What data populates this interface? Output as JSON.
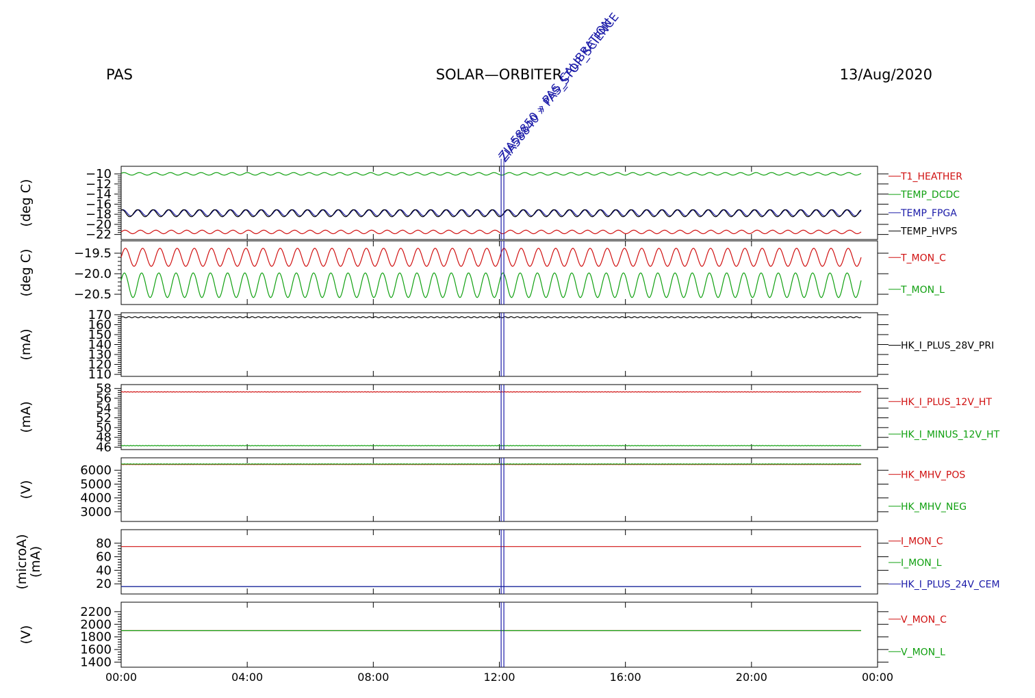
{
  "header": {
    "left": "PAS",
    "center": "SOLAR—ORBITER",
    "right": "13/Aug/2020"
  },
  "event": {
    "label": "ZIA58840 » PAS_STOP_SCIENCE",
    "label_overlay": "ZIA58850 » PAS_CALIBRATION",
    "time_hours": 12.1
  },
  "colors": {
    "red": "#d01010",
    "green": "#10a010",
    "blue": "#1a1aa8",
    "black": "#000000",
    "event": "#1a1aa8"
  },
  "chart_data": [
    {
      "type": "line",
      "ylabel": "(deg C)",
      "ylim": [
        -23,
        -8.5
      ],
      "yticks": [
        -10,
        -12,
        -14,
        -16,
        -18,
        -20,
        -22
      ],
      "ytick_labels": [
        "−10",
        "−12",
        "−14",
        "−16",
        "−18",
        "−20",
        "−22"
      ],
      "xlim": [
        0,
        24
      ],
      "series": [
        {
          "name": "T1_HEATHER",
          "color": "red",
          "mean": -21.5,
          "amp": 0.35,
          "cycles": 48
        },
        {
          "name": "TEMP_DCDC",
          "color": "green",
          "mean": -10.0,
          "amp": 0.25,
          "cycles": 48
        },
        {
          "name": "TEMP_FPGA",
          "color": "blue",
          "mean": -17.7,
          "amp": 0.6,
          "cycles": 48
        },
        {
          "name": "TEMP_HVPS",
          "color": "black",
          "mean": -17.8,
          "amp": 0.7,
          "cycles": 48
        }
      ]
    },
    {
      "type": "line",
      "ylabel": "(deg C)",
      "ylim": [
        -20.75,
        -19.2
      ],
      "yticks": [
        -19.5,
        -20.0,
        -20.5
      ],
      "ytick_labels": [
        "−19.5",
        "−20.0",
        "−20.5"
      ],
      "xlim": [
        0,
        24
      ],
      "series": [
        {
          "name": "T_MON_C",
          "color": "red",
          "mean": -19.6,
          "amp": 0.22,
          "cycles": 43
        },
        {
          "name": "T_MON_L",
          "color": "green",
          "mean": -20.28,
          "amp": 0.3,
          "cycles": 43
        }
      ]
    },
    {
      "type": "line",
      "ylabel": "(mA)",
      "ylim": [
        108,
        172
      ],
      "yticks": [
        170,
        160,
        150,
        140,
        130,
        120,
        110
      ],
      "ytick_labels": [
        "170",
        "160",
        "150",
        "140",
        "130",
        "120",
        "110"
      ],
      "xlim": [
        0,
        24
      ],
      "series": [
        {
          "name": "HK_I_PLUS_28V_PRI",
          "color": "black",
          "mean": 167.5,
          "amp": 0.6,
          "cycles": 120
        }
      ]
    },
    {
      "type": "line",
      "ylabel": "(mA)",
      "ylim": [
        45.5,
        58.8
      ],
      "yticks": [
        58,
        56,
        54,
        52,
        50,
        48,
        46
      ],
      "ytick_labels": [
        "58",
        "56",
        "54",
        "52",
        "50",
        "48",
        "46"
      ],
      "xlim": [
        0,
        24
      ],
      "series": [
        {
          "name": "HK_I_PLUS_12V_HT",
          "color": "red",
          "mean": 57.3,
          "amp": 0.05,
          "cycles": 0
        },
        {
          "name": "HK_I_MINUS_12V_HT",
          "color": "green",
          "mean": 46.3,
          "amp": 0.05,
          "cycles": 0
        }
      ]
    },
    {
      "type": "line",
      "ylabel": "(V)",
      "ylim": [
        2300,
        6900
      ],
      "yticks": [
        6000,
        5000,
        4000,
        3000
      ],
      "ytick_labels": [
        "6000",
        "5000",
        "4000",
        "3000"
      ],
      "xlim": [
        0,
        24
      ],
      "series": [
        {
          "name": "HK_MHV_POS",
          "color": "red",
          "mean": 6420,
          "amp": 10,
          "cycles": 0
        },
        {
          "name": "HK_MHV_NEG",
          "color": "green",
          "mean": 6450,
          "amp": 10,
          "cycles": 0
        }
      ]
    },
    {
      "type": "line",
      "ylabel": "(microA)",
      "ylabel2": "(mA)",
      "ylim": [
        5,
        100
      ],
      "yticks": [
        80,
        60,
        40,
        20
      ],
      "ytick_labels": [
        "80",
        "60",
        "40",
        "20"
      ],
      "xlim": [
        0,
        24
      ],
      "series": [
        {
          "name": "I_MON_C",
          "color": "red",
          "mean": 75,
          "amp": 0,
          "cycles": 0
        },
        {
          "name": "I_MON_L",
          "color": "green",
          "mean": 16,
          "amp": 0,
          "cycles": 0
        },
        {
          "name": "HK_I_PLUS_24V_CEM",
          "color": "blue",
          "mean": 16,
          "amp": 0,
          "cycles": 0
        }
      ]
    },
    {
      "type": "line",
      "ylabel": "(V)",
      "ylim": [
        1320,
        2350
      ],
      "yticks": [
        2200,
        2000,
        1800,
        1600,
        1400
      ],
      "ytick_labels": [
        "2200",
        "2000",
        "1800",
        "1600",
        "1400"
      ],
      "xlim": [
        0,
        24
      ],
      "series": [
        {
          "name": "V_MON_C",
          "color": "red",
          "mean": 1900,
          "amp": 0,
          "cycles": 0
        },
        {
          "name": "V_MON_L",
          "color": "green",
          "mean": 1900,
          "amp": 0,
          "cycles": 0
        }
      ]
    }
  ],
  "xaxis": {
    "ticks": [
      0,
      4,
      8,
      12,
      16,
      20,
      24
    ],
    "tick_labels": [
      "00:00",
      "04:00",
      "08:00",
      "12:00",
      "16:00",
      "20:00",
      "00:00"
    ]
  }
}
